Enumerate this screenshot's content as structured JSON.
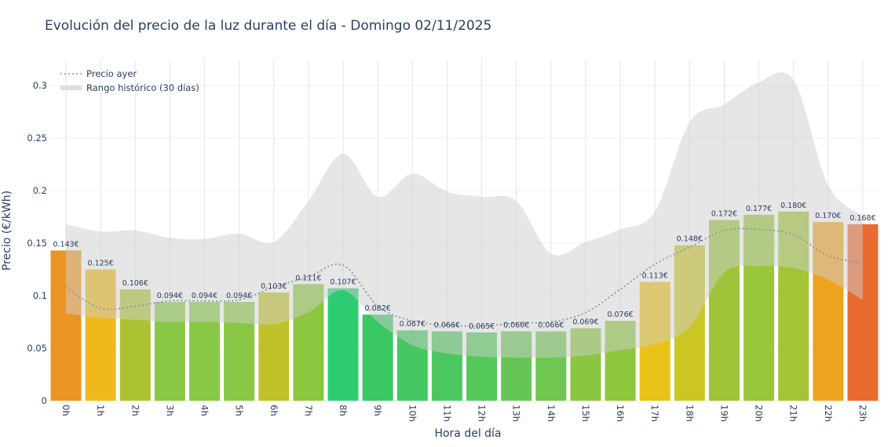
{
  "chart_data": {
    "type": "bar",
    "title": "Evolución del precio de la luz durante el día - Domingo 02/11/2025",
    "xlabel": "Hora del día",
    "ylabel": "Precio (€/kWh)",
    "ylim": [
      0,
      0.325
    ],
    "yticks": [
      0,
      0.05,
      0.1,
      0.15,
      0.2,
      0.25,
      0.3
    ],
    "ytick_labels": [
      "0",
      "0.05",
      "0.1",
      "0.15",
      "0.2",
      "0.25",
      "0.3"
    ],
    "grid": true,
    "legend_position": "top-left",
    "categories": [
      "0h",
      "1h",
      "2h",
      "3h",
      "4h",
      "5h",
      "6h",
      "7h",
      "8h",
      "9h",
      "10h",
      "11h",
      "12h",
      "13h",
      "14h",
      "15h",
      "16h",
      "17h",
      "18h",
      "19h",
      "20h",
      "21h",
      "22h",
      "23h"
    ],
    "values": [
      0.143,
      0.125,
      0.106,
      0.094,
      0.094,
      0.094,
      0.103,
      0.111,
      0.107,
      0.082,
      0.067,
      0.066,
      0.065,
      0.066,
      0.066,
      0.069,
      0.076,
      0.113,
      0.148,
      0.172,
      0.177,
      0.18,
      0.17,
      0.168
    ],
    "value_labels": [
      "0.143€",
      "0.125€",
      "0.106€",
      "0.094€",
      "0.094€",
      "0.094€",
      "0.103€",
      "0.111€",
      "0.107€",
      "0.082€",
      "0.067€",
      "0.066€",
      "0.065€",
      "0.066€",
      "0.066€",
      "0.069€",
      "0.076€",
      "0.113€",
      "0.148€",
      "0.172€",
      "0.177€",
      "0.180€",
      "0.170€",
      "0.168€"
    ],
    "bar_colors": [
      "#ec9522",
      "#f0b81c",
      "#adc232",
      "#88c845",
      "#88c845",
      "#88c845",
      "#c0c228",
      "#8dc63f",
      "#2ecc71",
      "#3cc864",
      "#45c862",
      "#4cc75f",
      "#55c85a",
      "#66c655",
      "#6fc650",
      "#8ac640",
      "#8ec63e",
      "#e9c318",
      "#ccc624",
      "#9fc43a",
      "#99c63a",
      "#a3c434",
      "#eea31e",
      "#e96b2f"
    ],
    "series": [
      {
        "name": "Precio ayer",
        "style": "dotted-line",
        "color": "#8a97a8",
        "values": [
          0.108,
          0.088,
          0.09,
          0.095,
          0.095,
          0.096,
          0.108,
          0.118,
          0.129,
          0.09,
          0.076,
          0.072,
          0.071,
          0.074,
          0.075,
          0.084,
          0.106,
          0.13,
          0.146,
          0.162,
          0.163,
          0.158,
          0.138,
          0.131
        ]
      },
      {
        "name": "Rango histórico (30 días)",
        "style": "band",
        "color": "#d9d9d9",
        "upper": [
          0.168,
          0.161,
          0.162,
          0.155,
          0.154,
          0.159,
          0.151,
          0.19,
          0.235,
          0.194,
          0.216,
          0.199,
          0.194,
          0.19,
          0.14,
          0.151,
          0.163,
          0.18,
          0.265,
          0.282,
          0.303,
          0.305,
          0.205,
          0.176
        ],
        "lower": [
          0.083,
          0.079,
          0.077,
          0.075,
          0.075,
          0.074,
          0.073,
          0.084,
          0.105,
          0.075,
          0.053,
          0.045,
          0.042,
          0.041,
          0.041,
          0.043,
          0.048,
          0.054,
          0.07,
          0.122,
          0.128,
          0.126,
          0.115,
          0.096
        ]
      }
    ]
  }
}
